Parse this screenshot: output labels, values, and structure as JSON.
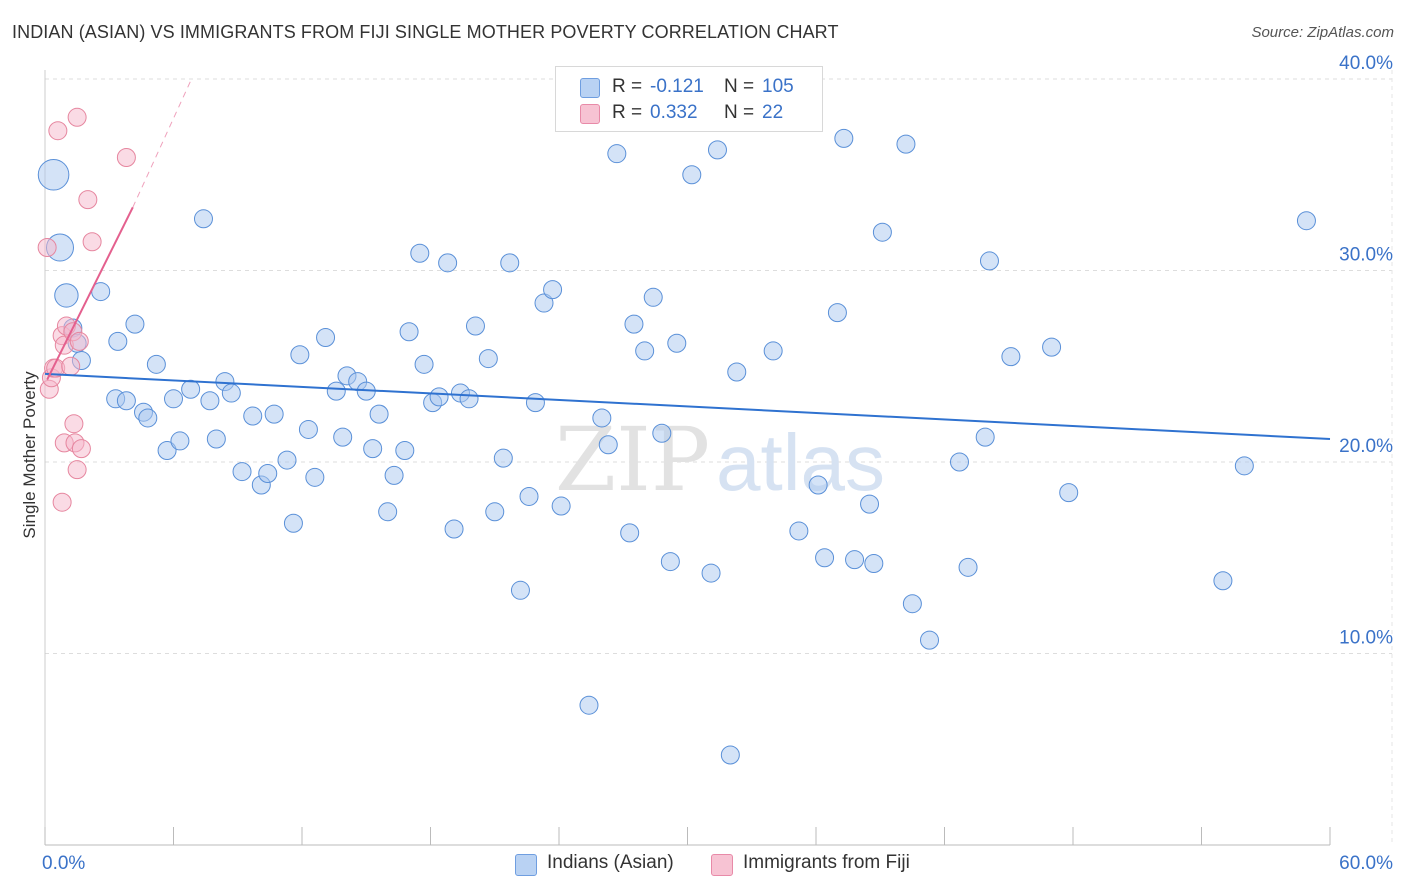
{
  "header": {
    "title": "INDIAN (ASIAN) VS IMMIGRANTS FROM FIJI SINGLE MOTHER POVERTY CORRELATION CHART",
    "source": "Source: ZipAtlas.com"
  },
  "legend": {
    "r_label": "R =",
    "n_label": "N =",
    "series1": {
      "r": "-0.121",
      "n": "105"
    },
    "series2": {
      "r": "0.332",
      "n": "22"
    }
  },
  "bottom_legend": {
    "series1": "Indians (Asian)",
    "series2": "Immigrants from Fiji"
  },
  "colors": {
    "blue_fill": "#a9c8f0",
    "blue_stroke": "#5a90d8",
    "blue_line": "#2f72d0",
    "pink_fill": "#f5b8cc",
    "pink_stroke": "#e6869f",
    "pink_line": "#e4608e",
    "grid": "#dddddd",
    "tick_label": "#3a72c8"
  },
  "chart_data": {
    "type": "scatter",
    "title": "INDIAN (ASIAN) VS IMMIGRANTS FROM FIJI SINGLE MOTHER POVERTY CORRELATION CHART",
    "xlabel": "",
    "ylabel": "Single Mother Poverty",
    "xlim": [
      0,
      60
    ],
    "ylim": [
      0,
      42
    ],
    "x_tick_labels": [
      "0.0%",
      "60.0%"
    ],
    "y_ticks": [
      10,
      20,
      30,
      40
    ],
    "y_tick_labels": [
      "10.0%",
      "20.0%",
      "30.0%",
      "40.0%"
    ],
    "watermark": "ZIPatlas",
    "series": [
      {
        "name": "Indians (Asian)",
        "r": -0.121,
        "n": 105,
        "trend": {
          "x": [
            0,
            60
          ],
          "y": [
            24.6,
            21.2
          ]
        },
        "points": [
          [
            0.4,
            35.0,
            1.7
          ],
          [
            0.7,
            31.2,
            1.5
          ],
          [
            1.0,
            28.7,
            1.3
          ],
          [
            1.3,
            27.0,
            1.0
          ],
          [
            1.5,
            26.2,
            1.0
          ],
          [
            1.7,
            25.3,
            1.0
          ],
          [
            2.6,
            28.9,
            1.0
          ],
          [
            3.4,
            26.3,
            1.0
          ],
          [
            3.3,
            23.3,
            1.0
          ],
          [
            3.8,
            23.2,
            1.0
          ],
          [
            4.2,
            27.2,
            1.0
          ],
          [
            4.6,
            22.6,
            1.0
          ],
          [
            4.8,
            22.3,
            1.0
          ],
          [
            5.2,
            25.1,
            1.0
          ],
          [
            5.7,
            20.6,
            1.0
          ],
          [
            6.0,
            23.3,
            1.0
          ],
          [
            6.3,
            21.1,
            1.0
          ],
          [
            6.8,
            23.8,
            1.0
          ],
          [
            7.4,
            32.7,
            1.0
          ],
          [
            7.7,
            23.2,
            1.0
          ],
          [
            8.0,
            21.2,
            1.0
          ],
          [
            8.4,
            24.2,
            1.0
          ],
          [
            8.7,
            23.6,
            1.0
          ],
          [
            9.2,
            19.5,
            1.0
          ],
          [
            9.7,
            22.4,
            1.0
          ],
          [
            10.1,
            18.8,
            1.0
          ],
          [
            10.4,
            19.4,
            1.0
          ],
          [
            10.7,
            22.5,
            1.0
          ],
          [
            11.3,
            20.1,
            1.0
          ],
          [
            11.6,
            16.8,
            1.0
          ],
          [
            11.9,
            25.6,
            1.0
          ],
          [
            12.3,
            21.7,
            1.0
          ],
          [
            12.6,
            19.2,
            1.0
          ],
          [
            13.1,
            26.5,
            1.0
          ],
          [
            13.6,
            23.7,
            1.0
          ],
          [
            13.9,
            21.3,
            1.0
          ],
          [
            14.1,
            24.5,
            1.0
          ],
          [
            14.6,
            24.2,
            1.0
          ],
          [
            15.0,
            23.7,
            1.0
          ],
          [
            15.3,
            20.7,
            1.0
          ],
          [
            15.6,
            22.5,
            1.0
          ],
          [
            16.0,
            17.4,
            1.0
          ],
          [
            16.3,
            19.3,
            1.0
          ],
          [
            16.8,
            20.6,
            1.0
          ],
          [
            17.0,
            26.8,
            1.0
          ],
          [
            17.5,
            30.9,
            1.0
          ],
          [
            17.7,
            25.1,
            1.0
          ],
          [
            18.1,
            23.1,
            1.0
          ],
          [
            18.4,
            23.4,
            1.0
          ],
          [
            18.8,
            30.4,
            1.0
          ],
          [
            19.1,
            16.5,
            1.0
          ],
          [
            19.4,
            23.6,
            1.0
          ],
          [
            19.8,
            23.3,
            1.0
          ],
          [
            20.1,
            27.1,
            1.0
          ],
          [
            20.7,
            25.4,
            1.0
          ],
          [
            21.0,
            17.4,
            1.0
          ],
          [
            21.4,
            20.2,
            1.0
          ],
          [
            21.7,
            30.4,
            1.0
          ],
          [
            22.2,
            13.3,
            1.0
          ],
          [
            22.6,
            18.2,
            1.0
          ],
          [
            22.9,
            23.1,
            1.0
          ],
          [
            23.3,
            28.3,
            1.0
          ],
          [
            23.7,
            29.0,
            1.0
          ],
          [
            24.1,
            17.7,
            1.0
          ],
          [
            25.1,
            38.0,
            1.0
          ],
          [
            25.4,
            7.3,
            1.0
          ],
          [
            26.0,
            22.3,
            1.0
          ],
          [
            26.3,
            20.9,
            1.0
          ],
          [
            26.7,
            36.1,
            1.0
          ],
          [
            27.3,
            16.3,
            1.0
          ],
          [
            27.5,
            27.2,
            1.0
          ],
          [
            28.0,
            25.8,
            1.0
          ],
          [
            28.4,
            28.6,
            1.0
          ],
          [
            28.8,
            21.5,
            1.0
          ],
          [
            29.2,
            14.8,
            1.0
          ],
          [
            29.5,
            26.2,
            1.0
          ],
          [
            30.2,
            35.0,
            1.0
          ],
          [
            31.1,
            14.2,
            1.0
          ],
          [
            31.4,
            36.3,
            1.0
          ],
          [
            32.0,
            4.7,
            1.0
          ],
          [
            32.3,
            24.7,
            1.0
          ],
          [
            34.0,
            25.8,
            1.0
          ],
          [
            35.2,
            16.4,
            1.0
          ],
          [
            36.1,
            18.8,
            1.0
          ],
          [
            36.4,
            15.0,
            1.0
          ],
          [
            37.0,
            27.8,
            1.0
          ],
          [
            37.3,
            36.9,
            1.0
          ],
          [
            37.8,
            14.9,
            1.0
          ],
          [
            38.5,
            17.8,
            1.0
          ],
          [
            38.7,
            14.7,
            1.0
          ],
          [
            39.1,
            32.0,
            1.0
          ],
          [
            40.2,
            36.6,
            1.0
          ],
          [
            40.5,
            12.6,
            1.0
          ],
          [
            41.3,
            10.7,
            1.0
          ],
          [
            42.7,
            20.0,
            1.0
          ],
          [
            43.1,
            14.5,
            1.0
          ],
          [
            43.9,
            21.3,
            1.0
          ],
          [
            44.1,
            30.5,
            1.0
          ],
          [
            45.1,
            25.5,
            1.0
          ],
          [
            47.0,
            26.0,
            1.0
          ],
          [
            47.8,
            18.4,
            1.0
          ],
          [
            55.0,
            13.8,
            1.0
          ],
          [
            56.0,
            19.8,
            1.0
          ],
          [
            58.9,
            32.6,
            1.0
          ]
        ]
      },
      {
        "name": "Immigrants from Fiji",
        "r": 0.332,
        "n": 22,
        "trend": {
          "x": [
            0.1,
            4.1
          ],
          "y": [
            24.3,
            33.3
          ]
        },
        "trend_extension": {
          "x": [
            4.1,
            6.8
          ],
          "y": [
            33.3,
            39.9
          ]
        },
        "points": [
          [
            0.1,
            31.2,
            1.0
          ],
          [
            0.2,
            23.8,
            1.0
          ],
          [
            0.3,
            24.4,
            1.0
          ],
          [
            0.4,
            24.9,
            1.0
          ],
          [
            0.5,
            24.9,
            1.0
          ],
          [
            0.6,
            37.3,
            1.0
          ],
          [
            0.8,
            26.6,
            1.0
          ],
          [
            0.9,
            26.1,
            1.0
          ],
          [
            0.9,
            21.0,
            1.0
          ],
          [
            0.8,
            17.9,
            1.0
          ],
          [
            1.0,
            27.1,
            1.0
          ],
          [
            1.2,
            25.0,
            1.0
          ],
          [
            1.3,
            26.8,
            1.0
          ],
          [
            1.35,
            22.0,
            1.0
          ],
          [
            1.4,
            21.0,
            1.0
          ],
          [
            1.5,
            19.6,
            1.0
          ],
          [
            1.5,
            38.0,
            1.0
          ],
          [
            1.6,
            26.3,
            1.0
          ],
          [
            1.7,
            20.7,
            1.0
          ],
          [
            2.0,
            33.7,
            1.0
          ],
          [
            2.2,
            31.5,
            1.0
          ],
          [
            3.8,
            35.9,
            1.0
          ]
        ]
      }
    ]
  }
}
